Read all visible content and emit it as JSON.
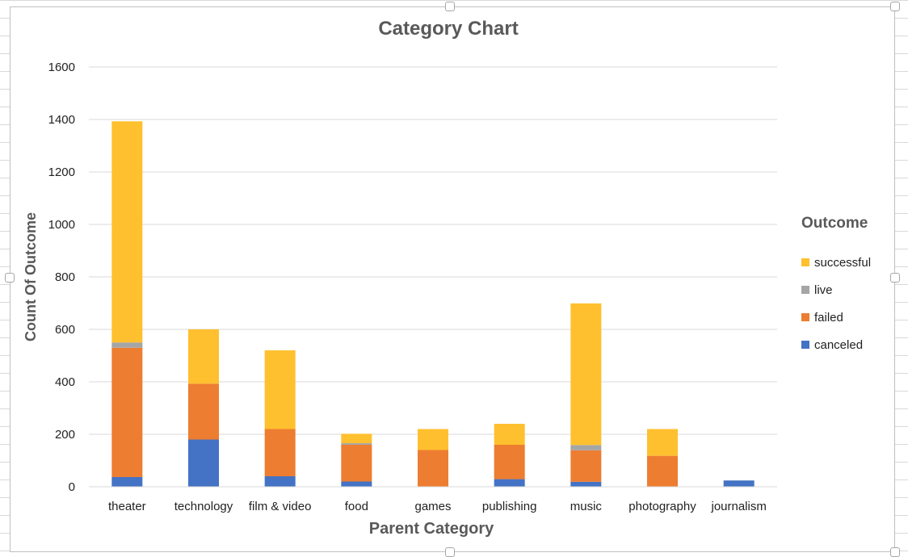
{
  "chart_data": {
    "type": "bar",
    "stacked": true,
    "title": "Category Chart",
    "xlabel": "Parent Category",
    "ylabel": "Count Of Outcome",
    "ylim": [
      0,
      1600
    ],
    "yticks": [
      0,
      200,
      400,
      600,
      800,
      1000,
      1200,
      1400,
      1600
    ],
    "grid": true,
    "legend_title": "Outcome",
    "legend_position": "right",
    "categories": [
      "theater",
      "technology",
      "film & video",
      "food",
      "games",
      "publishing",
      "music",
      "photography",
      "journalism"
    ],
    "series": [
      {
        "name": "canceled",
        "color": "#4472C4",
        "values": [
          37,
          180,
          40,
          20,
          0,
          29,
          19,
          0,
          24
        ]
      },
      {
        "name": "failed",
        "color": "#ED7D31",
        "values": [
          493,
          213,
          180,
          140,
          140,
          131,
          120,
          118,
          0
        ]
      },
      {
        "name": "live",
        "color": "#A5A5A5",
        "values": [
          20,
          0,
          0,
          6,
          0,
          0,
          20,
          0,
          0
        ]
      },
      {
        "name": "successful",
        "color": "#FFC02F",
        "values": [
          843,
          207,
          300,
          36,
          80,
          80,
          540,
          102,
          0
        ]
      }
    ],
    "legend_order": [
      "successful",
      "live",
      "failed",
      "canceled"
    ]
  }
}
